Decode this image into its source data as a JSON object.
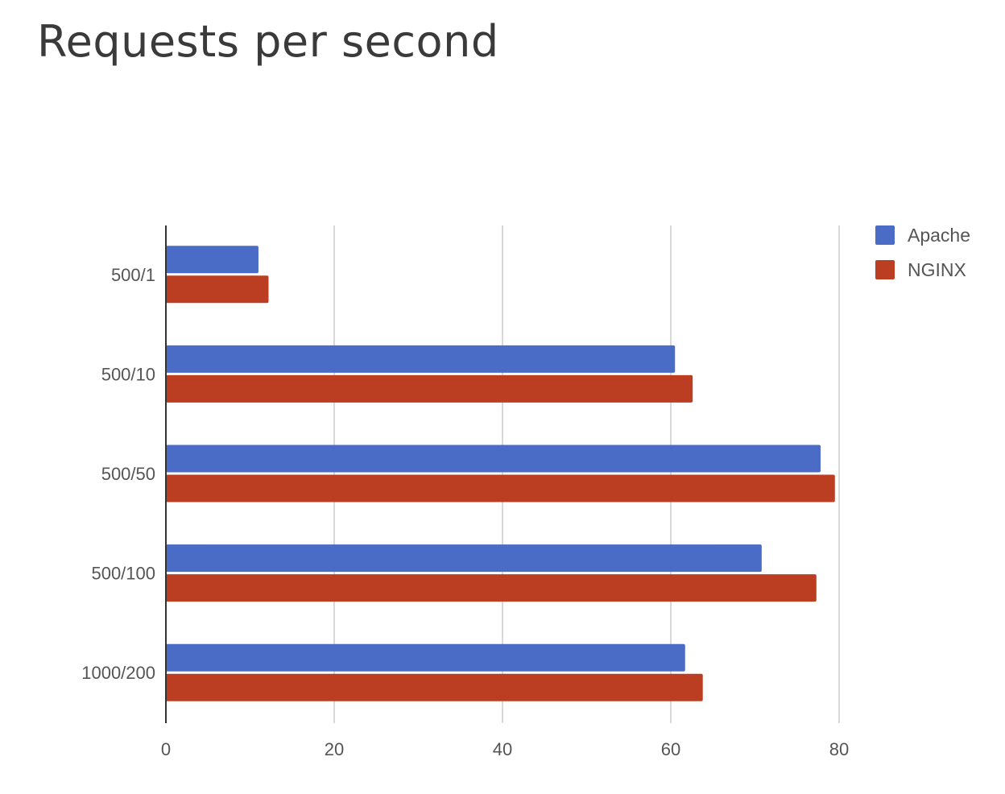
{
  "title": "Requests per second",
  "chart_data": {
    "type": "bar",
    "orientation": "horizontal",
    "categories": [
      "500/1",
      "500/10",
      "500/50",
      "500/100",
      "1000/200"
    ],
    "series": [
      {
        "name": "Apache",
        "color": "#4a6bc6",
        "values": [
          11,
          60.5,
          77.8,
          70.8,
          61.7
        ]
      },
      {
        "name": "NGINX",
        "color": "#bb3e22",
        "values": [
          12.2,
          62.6,
          79.5,
          77.3,
          63.8
        ]
      }
    ],
    "xticks": [
      0,
      20,
      40,
      60,
      80
    ],
    "xlim": [
      0,
      80
    ],
    "grid": true,
    "legend_position": "top-right"
  }
}
